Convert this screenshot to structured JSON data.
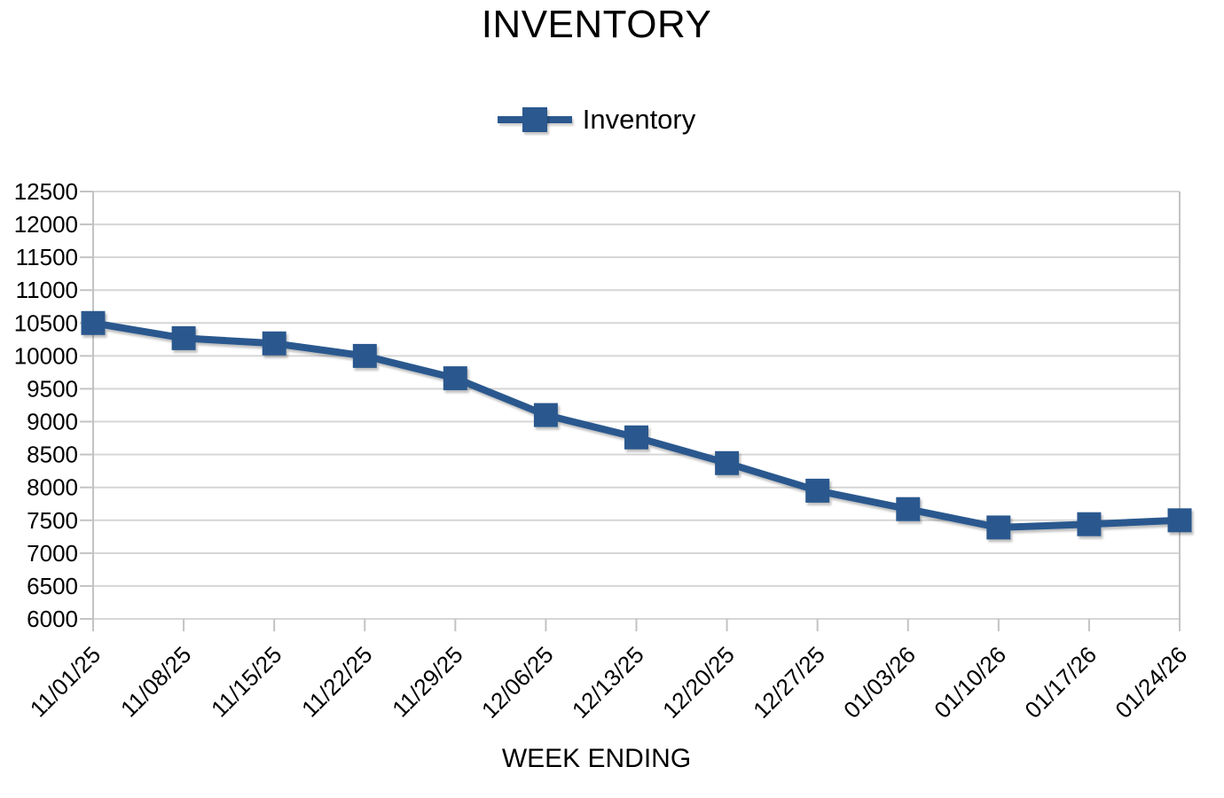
{
  "colors": {
    "series": "#2b588e",
    "gridline": "#d6d6d6",
    "axis": "#c3c3c3",
    "text": "#000000",
    "background": "#ffffff"
  },
  "chart_data": {
    "type": "line",
    "title": "INVENTORY",
    "xlabel": "WEEK ENDING",
    "ylabel": "",
    "legend_position": "top-center",
    "grid": true,
    "marker": "square",
    "x_tick_rotation": 45,
    "categories": [
      "11/01/25",
      "11/08/25",
      "11/15/25",
      "11/22/25",
      "11/29/25",
      "12/06/25",
      "12/13/25",
      "12/20/25",
      "12/27/25",
      "01/03/26",
      "01/10/26",
      "01/17/26",
      "01/24/26"
    ],
    "series": [
      {
        "name": "Inventory",
        "values": [
          10500,
          10270,
          10190,
          10000,
          9660,
          9100,
          8760,
          8370,
          7950,
          7670,
          7390,
          7440,
          7500
        ]
      }
    ],
    "ylim": [
      6000,
      12500
    ],
    "ytick_step": 500,
    "yticks": [
      6000,
      6500,
      7000,
      7500,
      8000,
      8500,
      9000,
      9500,
      10000,
      10500,
      11000,
      11500,
      12000,
      12500
    ]
  }
}
